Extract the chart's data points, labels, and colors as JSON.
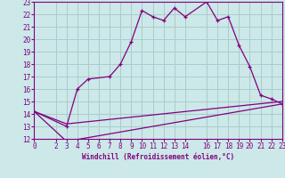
{
  "bg_color": "#cce8e8",
  "line_color": "#800080",
  "grid_color": "#aacccc",
  "xlabel": "Windchill (Refroidissement éolien,°C)",
  "xlim": [
    0,
    23
  ],
  "ylim": [
    12,
    23
  ],
  "xticks": [
    0,
    2,
    3,
    4,
    5,
    6,
    7,
    8,
    9,
    10,
    11,
    12,
    13,
    14,
    16,
    17,
    18,
    19,
    20,
    21,
    22,
    23
  ],
  "yticks": [
    12,
    13,
    14,
    15,
    16,
    17,
    18,
    19,
    20,
    21,
    22,
    23
  ],
  "line1_x": [
    0,
    3,
    4,
    5,
    7,
    8,
    9,
    10,
    11,
    12,
    13,
    14,
    16,
    17,
    18,
    19,
    20,
    21,
    22,
    23
  ],
  "line1_y": [
    14.2,
    13.0,
    16.0,
    16.8,
    17.0,
    18.0,
    19.8,
    22.3,
    21.8,
    21.5,
    22.5,
    21.8,
    23.0,
    21.5,
    21.8,
    19.5,
    17.8,
    15.5,
    15.2,
    14.8
  ],
  "line2_x": [
    0,
    3,
    23
  ],
  "line2_y": [
    14.2,
    13.2,
    15.0
  ],
  "line3_x": [
    0,
    3,
    23
  ],
  "line3_y": [
    14.2,
    11.8,
    14.8
  ],
  "xlabel_fontsize": 5.5,
  "tick_fontsize": 5.5
}
